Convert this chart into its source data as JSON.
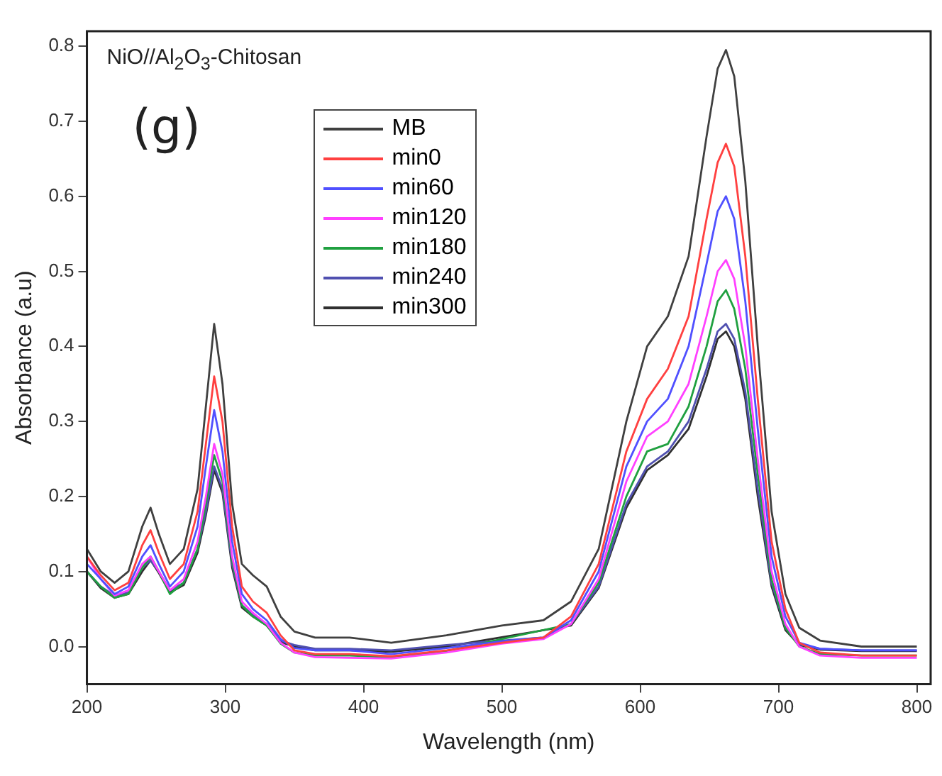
{
  "chart_data": {
    "type": "line",
    "xlabel": "Wavelength (nm)",
    "ylabel": "Absorbance (a.u)",
    "annotations": [
      "NiO//Al$_{2}$O$_{3}$-Chitosan",
      "(g)"
    ],
    "x": [
      200,
      210,
      220,
      230,
      240,
      246,
      252,
      260,
      270,
      280,
      286,
      292,
      298,
      305,
      312,
      320,
      330,
      340,
      350,
      365,
      390,
      420,
      460,
      500,
      530,
      550,
      570,
      590,
      605,
      620,
      635,
      648,
      656,
      662,
      668,
      676,
      685,
      695,
      705,
      715,
      730,
      760,
      800
    ],
    "series": [
      {
        "name": "MB",
        "color": "#404040",
        "values": [
          0.13,
          0.1,
          0.085,
          0.1,
          0.16,
          0.185,
          0.15,
          0.11,
          0.13,
          0.21,
          0.32,
          0.43,
          0.35,
          0.19,
          0.11,
          0.095,
          0.08,
          0.04,
          0.02,
          0.012,
          0.012,
          0.005,
          0.015,
          0.028,
          0.035,
          0.06,
          0.13,
          0.3,
          0.4,
          0.44,
          0.52,
          0.68,
          0.77,
          0.795,
          0.76,
          0.62,
          0.4,
          0.18,
          0.07,
          0.025,
          0.008,
          0.0,
          0.0
        ]
      },
      {
        "name": "min0",
        "color": "#ff4040",
        "values": [
          0.12,
          0.095,
          0.075,
          0.085,
          0.135,
          0.155,
          0.125,
          0.09,
          0.11,
          0.18,
          0.27,
          0.36,
          0.3,
          0.16,
          0.08,
          0.06,
          0.045,
          0.015,
          -0.005,
          -0.01,
          -0.01,
          -0.013,
          -0.005,
          0.005,
          0.012,
          0.04,
          0.11,
          0.26,
          0.33,
          0.37,
          0.44,
          0.57,
          0.645,
          0.67,
          0.64,
          0.52,
          0.33,
          0.14,
          0.05,
          0.005,
          -0.008,
          -0.012,
          -0.012
        ]
      },
      {
        "name": "min60",
        "color": "#5050ff",
        "values": [
          0.11,
          0.09,
          0.07,
          0.08,
          0.12,
          0.135,
          0.11,
          0.08,
          0.1,
          0.16,
          0.24,
          0.315,
          0.26,
          0.14,
          0.07,
          0.05,
          0.035,
          0.01,
          -0.002,
          -0.005,
          -0.005,
          -0.01,
          -0.002,
          0.007,
          0.012,
          0.035,
          0.1,
          0.24,
          0.3,
          0.33,
          0.4,
          0.51,
          0.58,
          0.6,
          0.57,
          0.46,
          0.29,
          0.12,
          0.04,
          0.005,
          -0.003,
          -0.005,
          -0.005
        ]
      },
      {
        "name": "min120",
        "color": "#ff40ff",
        "values": [
          0.12,
          0.09,
          0.068,
          0.075,
          0.11,
          0.12,
          0.1,
          0.075,
          0.09,
          0.14,
          0.2,
          0.27,
          0.23,
          0.12,
          0.06,
          0.045,
          0.03,
          0.005,
          -0.008,
          -0.014,
          -0.015,
          -0.016,
          -0.008,
          0.004,
          0.01,
          0.03,
          0.09,
          0.22,
          0.28,
          0.3,
          0.35,
          0.44,
          0.5,
          0.515,
          0.49,
          0.4,
          0.25,
          0.1,
          0.03,
          0.0,
          -0.012,
          -0.015,
          -0.015
        ]
      },
      {
        "name": "min180",
        "color": "#20a040",
        "values": [
          0.1,
          0.08,
          0.065,
          0.07,
          0.105,
          0.12,
          0.1,
          0.07,
          0.085,
          0.13,
          0.19,
          0.255,
          0.22,
          0.115,
          0.055,
          0.04,
          0.028,
          0.004,
          -0.008,
          -0.012,
          -0.012,
          -0.014,
          -0.006,
          null,
          null,
          0.03,
          0.085,
          0.2,
          0.26,
          0.27,
          0.32,
          0.4,
          0.46,
          0.475,
          0.45,
          0.37,
          0.23,
          0.09,
          0.025,
          0.0,
          -0.01,
          -0.012,
          -0.012
        ]
      },
      {
        "name": "min240",
        "color": "#5050b0",
        "values": [
          0.1,
          0.08,
          0.068,
          0.072,
          0.105,
          0.115,
          0.1,
          0.075,
          0.085,
          0.13,
          0.18,
          0.24,
          0.21,
          0.11,
          0.055,
          0.042,
          0.03,
          0.008,
          0.002,
          -0.003,
          -0.003,
          -0.005,
          0.002,
          0.008,
          0.012,
          0.03,
          0.08,
          0.19,
          0.24,
          0.26,
          0.3,
          0.37,
          0.42,
          0.43,
          0.41,
          0.34,
          0.21,
          0.085,
          0.025,
          0.003,
          -0.003,
          -0.005,
          -0.005
        ]
      },
      {
        "name": "min300",
        "color": "#303030",
        "values": [
          0.1,
          0.078,
          0.065,
          0.07,
          0.1,
          0.115,
          0.098,
          0.072,
          0.082,
          0.125,
          0.175,
          0.235,
          0.205,
          0.105,
          0.052,
          0.04,
          0.028,
          0.006,
          0.0,
          -0.005,
          -0.005,
          -0.007,
          0.0,
          null,
          null,
          0.028,
          0.078,
          0.185,
          0.235,
          0.255,
          0.29,
          0.36,
          0.41,
          0.42,
          0.4,
          0.33,
          0.2,
          0.08,
          0.022,
          0.002,
          -0.004,
          -0.006,
          -0.006
        ]
      }
    ],
    "xlim": [
      200,
      810
    ],
    "ylim": [
      -0.05,
      0.82
    ],
    "xticks": [
      200,
      300,
      400,
      500,
      600,
      700,
      800
    ],
    "yticks": [
      {
        "value": 0,
        "label": "0.0"
      },
      {
        "value": 0.1,
        "label": "0.1"
      },
      {
        "value": 0.2,
        "label": "0.2"
      },
      {
        "value": 0.3,
        "label": "0.3"
      },
      {
        "value": 0.4,
        "label": "0.4"
      },
      {
        "value": 0.5,
        "label": "0.5"
      },
      {
        "value": 0.6,
        "label": "0.6"
      },
      {
        "value": 0.7,
        "label": "0.7"
      },
      {
        "value": 0.8,
        "label": "0.8"
      }
    ],
    "grid": false,
    "legend": "top",
    "marker": "none",
    "line_style": "solid"
  }
}
